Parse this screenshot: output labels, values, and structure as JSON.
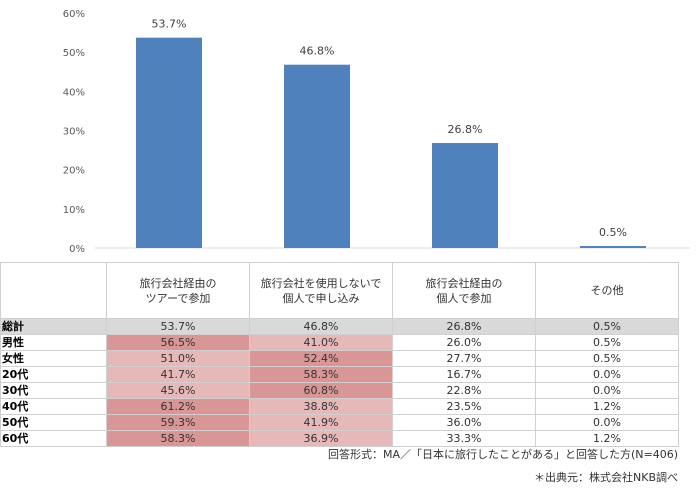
{
  "chart_data": {
    "type": "bar",
    "categories": [
      "旅行会社経由のツアーで参加",
      "旅行会社を使用しないで個人で申し込み",
      "旅行会社経由の個人で参加",
      "その他"
    ],
    "values": [
      53.7,
      46.8,
      26.8,
      0.5
    ],
    "data_labels": [
      "53.7%",
      "46.8%",
      "26.8%",
      "0.5%"
    ],
    "ylim": [
      0,
      60
    ],
    "yticks": [
      "0%",
      "10%",
      "20%",
      "30%",
      "40%",
      "50%",
      "60%"
    ],
    "grid": false,
    "bar_color": "#4f81bd"
  },
  "table": {
    "headers": [
      [
        "旅行会社経由の",
        "ツアーで参加"
      ],
      [
        "旅行会社を使用しないで",
        "個人で申し込み"
      ],
      [
        "旅行会社経由の",
        "個人で参加"
      ],
      [
        "その他"
      ]
    ],
    "rows": [
      {
        "label": "総計",
        "cells": [
          "53.7%",
          "46.8%",
          "26.8%",
          "0.5%"
        ],
        "shade": [
          "",
          "",
          "",
          ""
        ]
      },
      {
        "label": "男性",
        "cells": [
          "56.5%",
          "41.0%",
          "26.0%",
          "0.5%"
        ],
        "shade": [
          "dark",
          "light",
          "",
          ""
        ]
      },
      {
        "label": "女性",
        "cells": [
          "51.0%",
          "52.4%",
          "27.7%",
          "0.5%"
        ],
        "shade": [
          "light",
          "dark",
          "",
          ""
        ]
      },
      {
        "label": "20代",
        "cells": [
          "41.7%",
          "58.3%",
          "16.7%",
          "0.0%"
        ],
        "shade": [
          "light",
          "dark",
          "",
          ""
        ]
      },
      {
        "label": "30代",
        "cells": [
          "45.6%",
          "60.8%",
          "22.8%",
          "0.0%"
        ],
        "shade": [
          "light",
          "dark",
          "",
          ""
        ]
      },
      {
        "label": "40代",
        "cells": [
          "61.2%",
          "38.8%",
          "23.5%",
          "1.2%"
        ],
        "shade": [
          "dark",
          "light",
          "",
          ""
        ]
      },
      {
        "label": "50代",
        "cells": [
          "59.3%",
          "41.9%",
          "36.0%",
          "0.0%"
        ],
        "shade": [
          "dark",
          "light",
          "",
          ""
        ]
      },
      {
        "label": "60代",
        "cells": [
          "58.3%",
          "36.9%",
          "33.3%",
          "1.2%"
        ],
        "shade": [
          "dark",
          "light",
          "",
          ""
        ]
      }
    ],
    "colors": {
      "dark": "#da9694",
      "light": "#e6b8b7"
    }
  },
  "notes": {
    "format": "回答形式：MA／「日本に旅行したことがある」と回答した方(N=406)",
    "source": "＊出典元：株式会社NKB調べ"
  }
}
